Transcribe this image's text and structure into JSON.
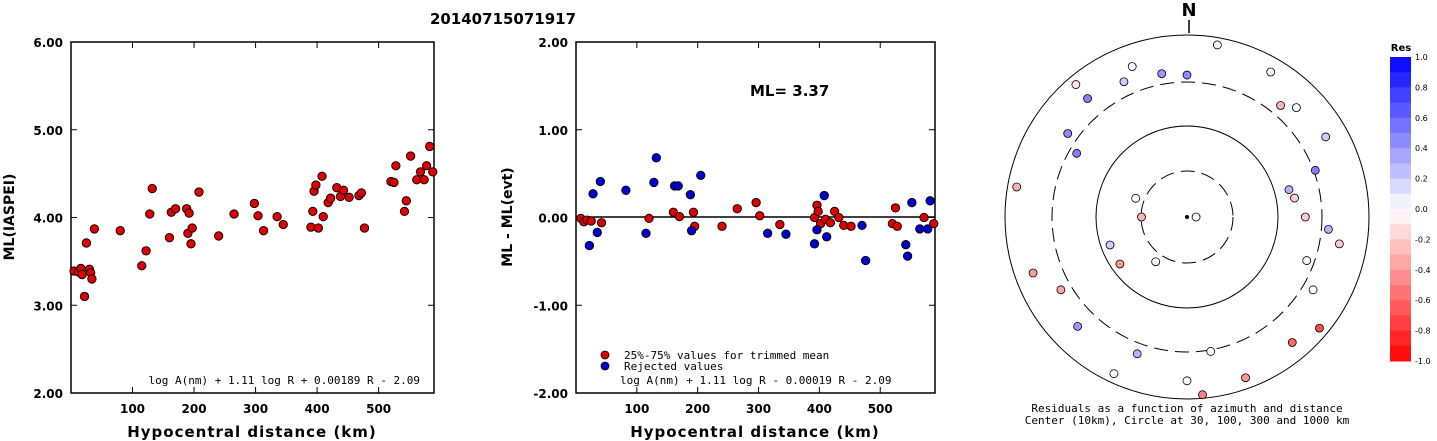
{
  "title": "20140715071917",
  "charts": [
    {
      "type": "scatter",
      "xlabel": "Hypocentral distance (km)",
      "ylabel": "ML(IASPEI)",
      "xlim": [
        0,
        590
      ],
      "ylim": [
        2.0,
        6.0
      ],
      "xticks": [
        "100",
        "200",
        "300",
        "400",
        "500"
      ],
      "yticks": [
        "2.00",
        "3.00",
        "4.00",
        "5.00",
        "6.00"
      ],
      "formula": "log A(nm) + 1.11 log R + 0.00189 R - 2.09",
      "points_color": "#dd0000",
      "points": [
        [
          5,
          3.39
        ],
        [
          12,
          3.38
        ],
        [
          16,
          3.42
        ],
        [
          18,
          3.35
        ],
        [
          22,
          3.1
        ],
        [
          25,
          3.71
        ],
        [
          30,
          3.41
        ],
        [
          32,
          3.37
        ],
        [
          34,
          3.3
        ],
        [
          38,
          3.87
        ],
        [
          80,
          3.85
        ],
        [
          115,
          3.45
        ],
        [
          122,
          3.62
        ],
        [
          128,
          4.04
        ],
        [
          132,
          4.33
        ],
        [
          160,
          3.77
        ],
        [
          163,
          4.06
        ],
        [
          170,
          4.1
        ],
        [
          188,
          4.1
        ],
        [
          190,
          3.82
        ],
        [
          192,
          4.05
        ],
        [
          195,
          3.7
        ],
        [
          197,
          3.88
        ],
        [
          208,
          4.29
        ],
        [
          240,
          3.79
        ],
        [
          265,
          4.04
        ],
        [
          298,
          4.16
        ],
        [
          304,
          4.02
        ],
        [
          313,
          3.85
        ],
        [
          335,
          4.01
        ],
        [
          345,
          3.92
        ],
        [
          390,
          3.89
        ],
        [
          393,
          4.07
        ],
        [
          395,
          4.3
        ],
        [
          398,
          4.37
        ],
        [
          402,
          3.88
        ],
        [
          408,
          4.47
        ],
        [
          410,
          4.01
        ],
        [
          418,
          4.17
        ],
        [
          422,
          4.22
        ],
        [
          432,
          4.34
        ],
        [
          438,
          4.24
        ],
        [
          443,
          4.31
        ],
        [
          452,
          4.23
        ],
        [
          468,
          4.25
        ],
        [
          472,
          4.28
        ],
        [
          477,
          3.88
        ],
        [
          520,
          4.41
        ],
        [
          525,
          4.4
        ],
        [
          528,
          4.59
        ],
        [
          542,
          4.07
        ],
        [
          545,
          4.19
        ],
        [
          552,
          4.7
        ],
        [
          562,
          4.43
        ],
        [
          568,
          4.52
        ],
        [
          574,
          4.43
        ],
        [
          578,
          4.59
        ],
        [
          583,
          4.81
        ],
        [
          588,
          4.52
        ]
      ]
    },
    {
      "type": "scatter",
      "xlabel": "Hypocentral distance (km)",
      "ylabel": "ML - ML(evt)",
      "xlim": [
        0,
        590
      ],
      "ylim": [
        -2.0,
        2.0
      ],
      "xticks": [
        "100",
        "200",
        "300",
        "400",
        "500"
      ],
      "yticks": [
        "-2.00",
        "-1.00",
        "0.00",
        "1.00",
        "2.00"
      ],
      "annotation": "ML=  3.37",
      "legend": [
        {
          "label": "25%-75% values for trimmed mean",
          "color": "#dd0000"
        },
        {
          "label": "Rejected values",
          "color": "#0000cc"
        }
      ],
      "formula": "log A(nm) + 1.11 log R - 0.00019 R - 2.09",
      "points_kept": [
        [
          8,
          -0.01
        ],
        [
          13,
          -0.05
        ],
        [
          18,
          -0.03
        ],
        [
          25,
          -0.04
        ],
        [
          42,
          -0.06
        ],
        [
          120,
          -0.01
        ],
        [
          160,
          0.06
        ],
        [
          170,
          0.01
        ],
        [
          193,
          0.06
        ],
        [
          195,
          -0.1
        ],
        [
          240,
          -0.1
        ],
        [
          265,
          0.1
        ],
        [
          296,
          0.17
        ],
        [
          302,
          0.02
        ],
        [
          335,
          -0.08
        ],
        [
          392,
          0.0
        ],
        [
          396,
          0.14
        ],
        [
          398,
          0.07
        ],
        [
          402,
          -0.07
        ],
        [
          410,
          -0.02
        ],
        [
          418,
          -0.06
        ],
        [
          425,
          0.07
        ],
        [
          432,
          0.0
        ],
        [
          440,
          -0.09
        ],
        [
          452,
          -0.1
        ],
        [
          520,
          -0.07
        ],
        [
          525,
          0.11
        ],
        [
          528,
          -0.1
        ],
        [
          572,
          0.0
        ],
        [
          588,
          -0.07
        ]
      ],
      "points_rejected": [
        [
          22,
          -0.32
        ],
        [
          28,
          0.27
        ],
        [
          35,
          -0.17
        ],
        [
          40,
          0.41
        ],
        [
          82,
          0.31
        ],
        [
          115,
          -0.18
        ],
        [
          128,
          0.4
        ],
        [
          132,
          0.68
        ],
        [
          162,
          0.36
        ],
        [
          168,
          0.36
        ],
        [
          188,
          0.26
        ],
        [
          190,
          -0.15
        ],
        [
          205,
          0.48
        ],
        [
          315,
          -0.18
        ],
        [
          345,
          -0.19
        ],
        [
          392,
          -0.3
        ],
        [
          396,
          -0.14
        ],
        [
          408,
          0.25
        ],
        [
          412,
          -0.22
        ],
        [
          470,
          -0.09
        ],
        [
          476,
          -0.49
        ],
        [
          542,
          -0.31
        ],
        [
          545,
          -0.44
        ],
        [
          552,
          0.17
        ],
        [
          565,
          -0.13
        ],
        [
          578,
          -0.13
        ],
        [
          582,
          0.19
        ]
      ]
    }
  ],
  "polar": {
    "north_label": "N",
    "caption_line1": "Residuals as a function of azimuth and distance",
    "caption_line2": "Center (10km), Circle at 30, 100, 300 and 1000 km",
    "colorbar_title": "Res",
    "colorbar_ticks": [
      "1.0",
      "0.8",
      "0.6",
      "0.4",
      "0.2",
      "0.0",
      "-0.2",
      "-0.4",
      "-0.6",
      "-0.8",
      "-1.0"
    ],
    "stations": [
      {
        "az": 10,
        "r": 0.96,
        "res": 0.0
      },
      {
        "az": 30,
        "r": 0.92,
        "res": 0.0
      },
      {
        "az": 340,
        "r": 0.88,
        "res": 0.0
      },
      {
        "az": 320,
        "r": 0.85,
        "res": 0.5
      },
      {
        "az": 350,
        "r": 0.8,
        "res": 0.4
      },
      {
        "az": 0,
        "r": 0.78,
        "res": 0.45
      },
      {
        "az": 60,
        "r": 0.88,
        "res": 0.2
      },
      {
        "az": 300,
        "r": 0.7,
        "res": 0.5
      },
      {
        "az": 305,
        "r": 0.8,
        "res": 0.45
      },
      {
        "az": 280,
        "r": 0.95,
        "res": -0.3
      },
      {
        "az": 240,
        "r": 0.8,
        "res": -0.35
      },
      {
        "az": 250,
        "r": 0.9,
        "res": -0.4
      },
      {
        "az": 225,
        "r": 0.85,
        "res": 0.4
      },
      {
        "az": 200,
        "r": 0.8,
        "res": 0.3
      },
      {
        "az": 170,
        "r": 0.75,
        "res": 0.0
      },
      {
        "az": 180,
        "r": 0.9,
        "res": 0.0
      },
      {
        "az": 175,
        "r": 0.98,
        "res": -0.5
      },
      {
        "az": 140,
        "r": 0.9,
        "res": -0.6
      },
      {
        "az": 120,
        "r": 0.8,
        "res": 0.0
      },
      {
        "az": 110,
        "r": 0.7,
        "res": 0.0
      },
      {
        "az": 100,
        "r": 0.85,
        "res": -0.2
      },
      {
        "az": 95,
        "r": 0.78,
        "res": 0.3
      },
      {
        "az": 80,
        "r": 0.6,
        "res": -0.2
      },
      {
        "az": 70,
        "r": 0.75,
        "res": 0.5
      },
      {
        "az": 90,
        "r": 0.65,
        "res": -0.2
      },
      {
        "az": 75,
        "r": 0.58,
        "res": 0.3
      },
      {
        "az": 250,
        "r": 0.45,
        "res": 0.2
      },
      {
        "az": 290,
        "r": 0.3,
        "res": 0.0
      },
      {
        "az": 270,
        "r": 0.25,
        "res": -0.3
      },
      {
        "az": 90,
        "r": 0.05,
        "res": 0.0
      },
      {
        "az": 215,
        "r": 0.3,
        "res": 0.0
      },
      {
        "az": 130,
        "r": 0.95,
        "res": -0.7
      },
      {
        "az": 320,
        "r": 0.95,
        "res": -0.1
      },
      {
        "az": 335,
        "r": 0.82,
        "res": 0.2
      },
      {
        "az": 45,
        "r": 0.85,
        "res": 0.0
      },
      {
        "az": 40,
        "r": 0.8,
        "res": -0.3
      },
      {
        "az": 160,
        "r": 0.94,
        "res": -0.4
      },
      {
        "az": 205,
        "r": 0.95,
        "res": 0.0
      },
      {
        "az": 235,
        "r": 0.45,
        "res": -0.4
      }
    ]
  }
}
